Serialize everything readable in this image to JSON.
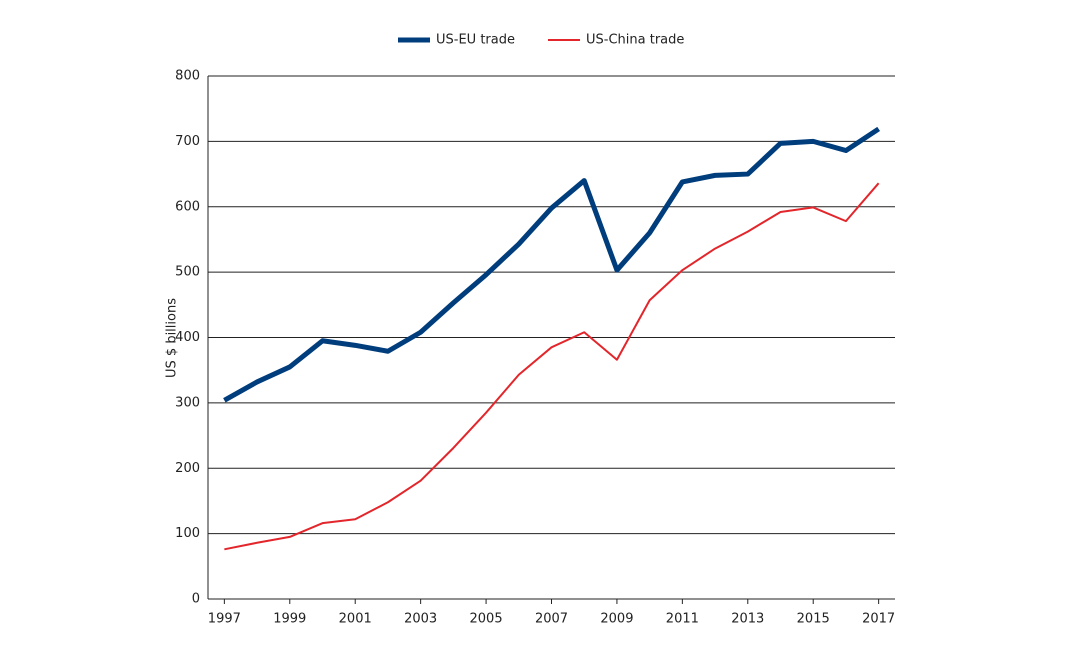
{
  "chart_data": {
    "type": "line",
    "y_label": "US $ billions",
    "x": [
      1997,
      1998,
      1999,
      2000,
      2001,
      2002,
      2003,
      2004,
      2005,
      2006,
      2007,
      2008,
      2009,
      2010,
      2011,
      2012,
      2013,
      2014,
      2015,
      2016,
      2017
    ],
    "series": [
      {
        "name": "US-EU trade",
        "color": "#003d7c",
        "values": [
          304,
          332,
          355,
          395,
          388,
          379,
          408,
          453,
          496,
          543,
          598,
          640,
          503,
          560,
          638,
          648,
          650,
          697,
          700,
          686,
          719
        ]
      },
      {
        "name": "US-China trade",
        "color": "#e2262b",
        "values": [
          76,
          86,
          95,
          116,
          122,
          148,
          181,
          231,
          285,
          343,
          385,
          408,
          366,
          457,
          503,
          536,
          562,
          592,
          599,
          578,
          636
        ]
      }
    ],
    "xlim": [
      1996.5,
      2017.5
    ],
    "xticks": [
      1997,
      1999,
      2001,
      2003,
      2005,
      2007,
      2009,
      2011,
      2013,
      2015,
      2017
    ],
    "ylim": [
      0,
      800
    ],
    "yticks": [
      0,
      100,
      200,
      300,
      400,
      500,
      600,
      700,
      800
    ],
    "grid": true,
    "legend": "top"
  }
}
